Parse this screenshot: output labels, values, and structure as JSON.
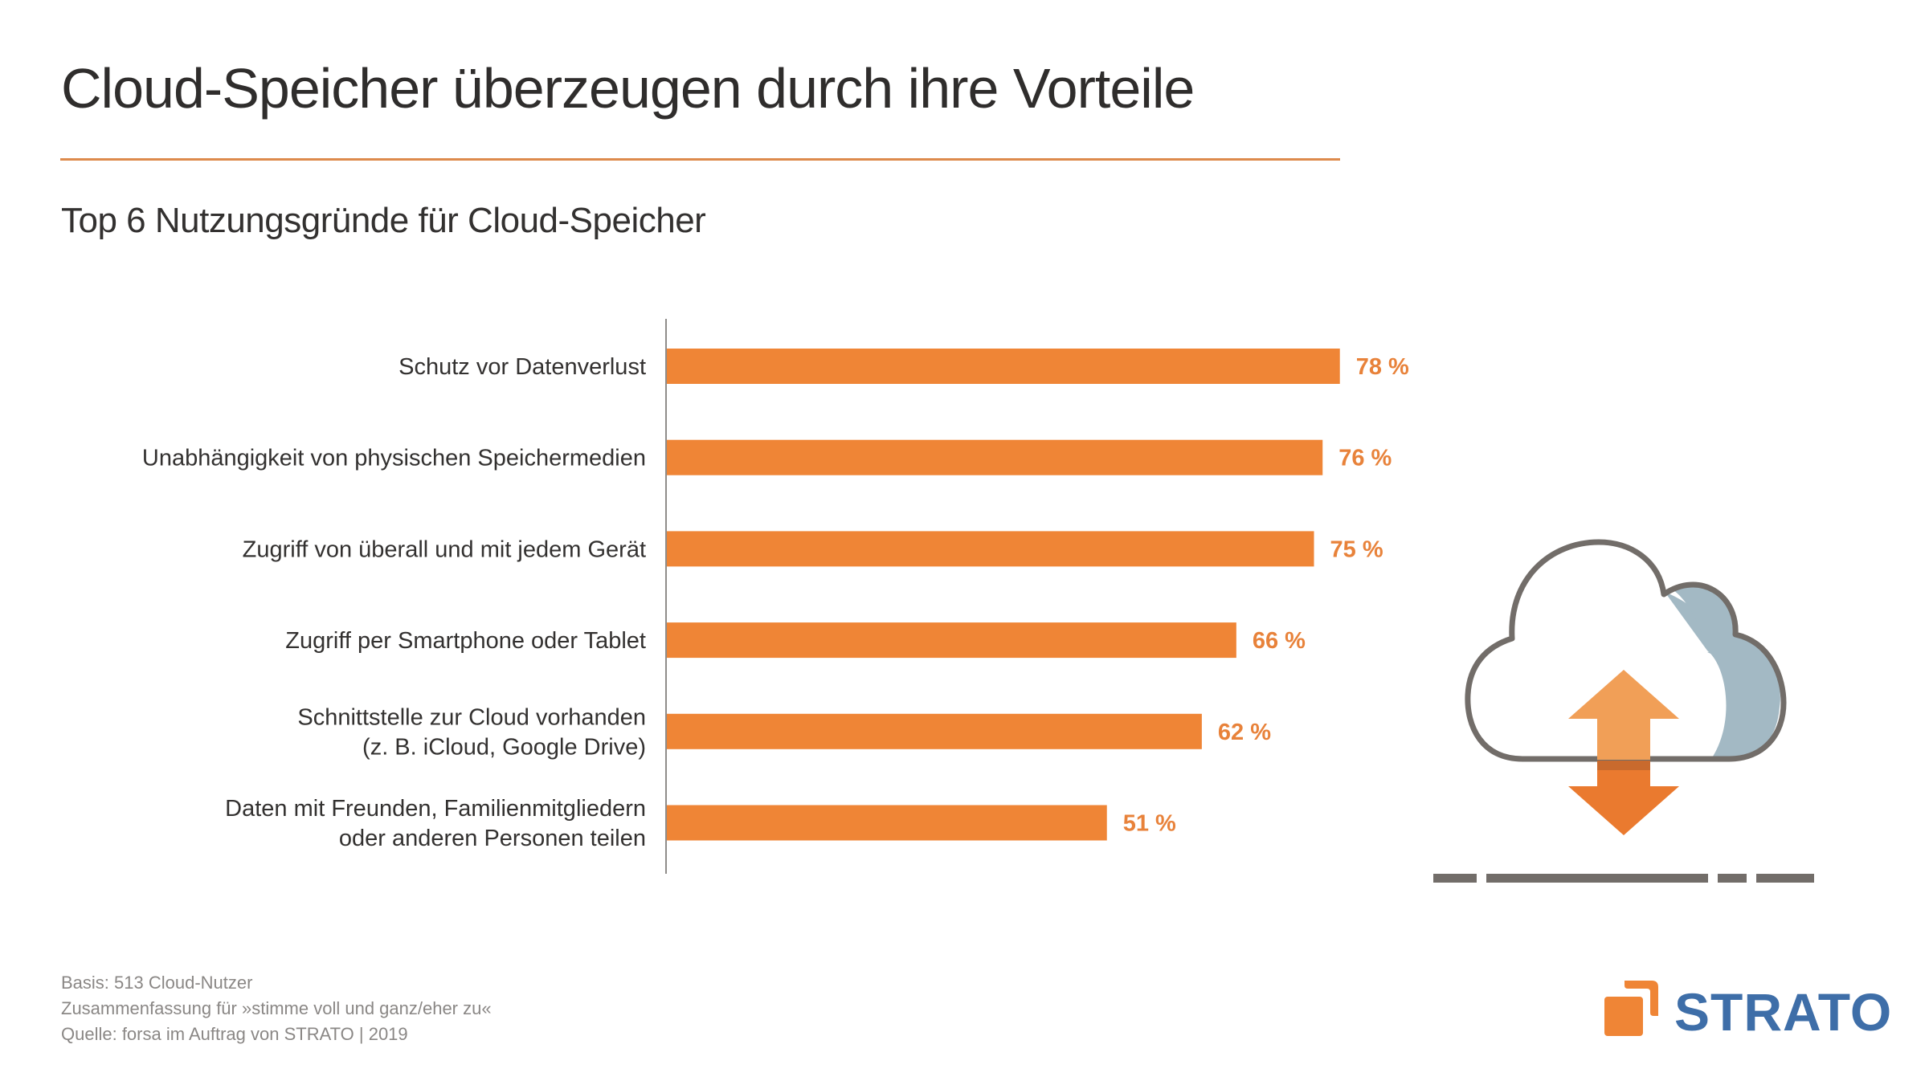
{
  "header": {
    "title": "Cloud-Speicher überzeugen durch ihre Vorteile",
    "subtitle": "Top 6 Nutzungsgründe für Cloud-Speicher"
  },
  "chart_data": {
    "type": "bar",
    "orientation": "horizontal",
    "title": "Top 6 Nutzungsgründe für Cloud-Speicher",
    "xlabel": "",
    "ylabel": "",
    "unit": "%",
    "xlim": [
      0,
      100
    ],
    "grid": false,
    "categories": [
      [
        "Schutz vor Datenverlust"
      ],
      [
        "Unabhängigkeit von physischen Speichermedien"
      ],
      [
        "Zugriff von überall und mit jedem Gerät"
      ],
      [
        "Zugriff per Smartphone oder Tablet"
      ],
      [
        "Schnittstelle zur Cloud vorhanden",
        "(z. B. iCloud, Google Drive)"
      ],
      [
        "Daten mit Freunden, Familienmitgliedern",
        "oder anderen Personen teilen"
      ]
    ],
    "values": [
      78,
      76,
      75,
      66,
      62,
      51
    ],
    "value_labels": [
      "78 %",
      "76 %",
      "75 %",
      "66 %",
      "62 %",
      "51 %"
    ],
    "bar_color": "#ef8536",
    "label_color": "#e8823a"
  },
  "footer": {
    "basis": "Basis: 513 Cloud-Nutzer",
    "summary": "Zusammenfassung für »stimme voll und ganz/eher zu«",
    "source": "Quelle: forsa im Auftrag von STRATO | 2019"
  },
  "logo": {
    "text": "STRATO",
    "text_color": "#3e6ea8",
    "mark_color": "#ef8536"
  },
  "illustration": {
    "icon": "cloud-upload-download-icon",
    "outline_color": "#726d69",
    "shade_color": "#a3b9c4",
    "arrow_up_color": "#f19f57",
    "arrow_down_color": "#ea7a2f"
  }
}
